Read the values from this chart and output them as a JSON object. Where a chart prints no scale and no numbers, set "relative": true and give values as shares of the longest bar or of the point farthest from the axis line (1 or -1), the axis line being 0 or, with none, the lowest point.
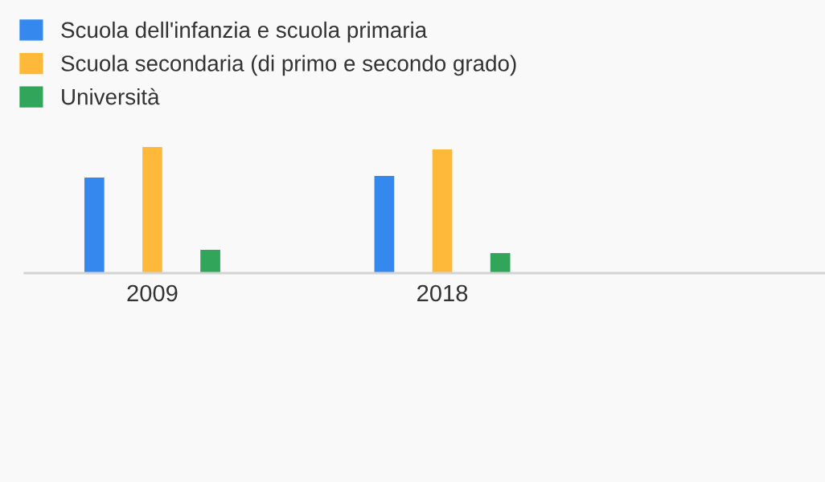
{
  "chart_data": {
    "type": "bar",
    "relative": true,
    "categories": [
      "2009",
      "2018"
    ],
    "series": [
      {
        "name": "Scuola dell'infanzia e scuola primaria",
        "color": "#3589ee",
        "values": [
          0.758,
          0.771
        ]
      },
      {
        "name": "Scuola secondaria (di primo e secondo grado)",
        "color": "#ffb93a",
        "values": [
          1,
          0.981
        ]
      },
      {
        "name": "Università",
        "color": "#31a55a",
        "values": [
          0.185,
          0.159
        ]
      }
    ],
    "legend": "top left",
    "grid": false
  }
}
